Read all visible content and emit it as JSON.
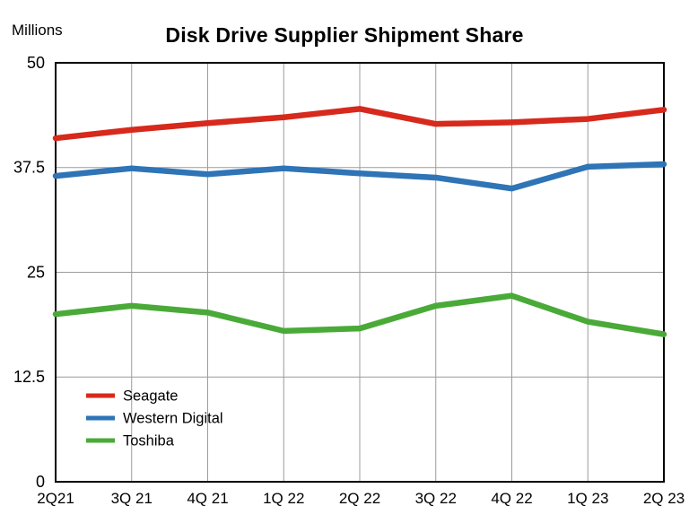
{
  "chart_data": {
    "type": "line",
    "title": "Disk Drive Supplier Shipment Share",
    "ylabel": "Millions",
    "xlabel": "",
    "categories": [
      "2Q21",
      "3Q 21",
      "4Q 21",
      "1Q 22",
      "2Q 22",
      "3Q 22",
      "4Q 22",
      "1Q 23",
      "2Q 23"
    ],
    "ylim": [
      0,
      50
    ],
    "yticks": [
      0,
      12.5,
      25,
      37.5,
      50
    ],
    "grid": true,
    "legend_position": "inside-bottom-left",
    "series": [
      {
        "name": "Seagate",
        "color": "#d7291c",
        "values": [
          41.0,
          42.0,
          42.8,
          43.5,
          44.5,
          42.7,
          42.9,
          43.3,
          44.4
        ]
      },
      {
        "name": "Western Digital",
        "color": "#2e74b6",
        "values": [
          36.5,
          37.4,
          36.7,
          37.4,
          36.8,
          36.3,
          35.0,
          37.6,
          37.9
        ]
      },
      {
        "name": "Toshiba",
        "color": "#4aaa38",
        "values": [
          20.0,
          21.0,
          20.2,
          18.0,
          18.3,
          21.0,
          22.2,
          19.1,
          17.6
        ]
      }
    ],
    "style": {
      "grid_color": "#9b9b9b",
      "axis_color": "#000000",
      "text_color": "#000000",
      "line_width": 6.5
    }
  }
}
